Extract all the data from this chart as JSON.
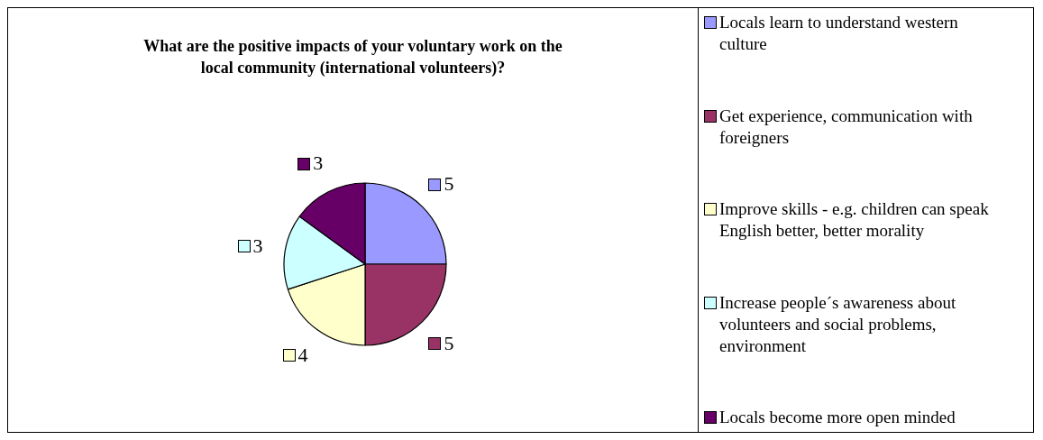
{
  "chart_data": {
    "type": "pie",
    "title": "What are the positive impacts of your voluntary work on the local community (international volunteers)?",
    "categories": [
      "Locals learn to understand western culture",
      "Get experience, communication with foreigners",
      "Improve skills - e.g. children can speak English better, better morality",
      "Increase people´s awareness about volunteers and social problems, environment",
      "Locals become more open minded"
    ],
    "values": [
      5,
      5,
      4,
      3,
      3
    ],
    "colors": [
      "#9999ff",
      "#993366",
      "#ffffcc",
      "#ccffff",
      "#660066"
    ],
    "data_labels": true,
    "legend": "right"
  }
}
